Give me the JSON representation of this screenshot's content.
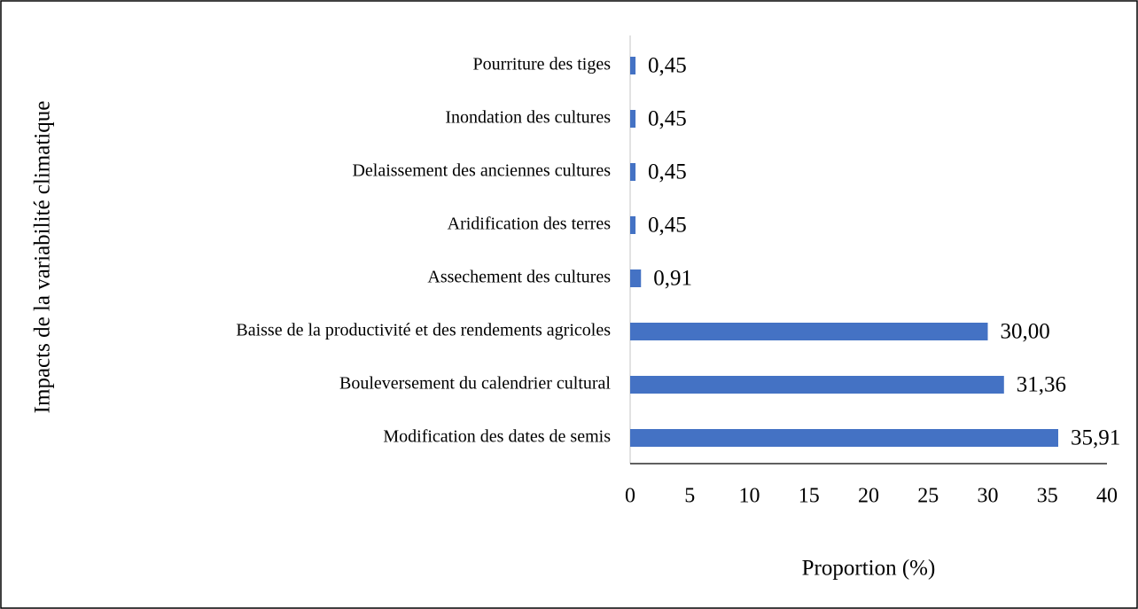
{
  "chart_data": {
    "type": "hbar",
    "y_label": "Impacts de la variabilité climatique",
    "x_label": "Proportion (%)",
    "categories": [
      "Pourriture des tiges",
      "Inondation des cultures",
      "Delaissement des anciennes cultures",
      "Aridification des terres",
      "Assechement des cultures",
      "Baisse de la productivité et des rendements agricoles",
      "Bouleversement du calendrier cultural",
      "Modification des dates de semis"
    ],
    "values": [
      0.45,
      0.45,
      0.45,
      0.45,
      0.91,
      30,
      31.36,
      35.91
    ],
    "value_labels": [
      "0,45",
      "0,45",
      "0,45",
      "0,45",
      "0,91",
      "30,00",
      "31,36",
      "35,91"
    ],
    "color": "#4472c4",
    "xlim": [
      0,
      40
    ],
    "xticks": [
      0,
      5,
      10,
      15,
      20,
      25,
      30,
      35,
      40
    ],
    "grid": false
  }
}
